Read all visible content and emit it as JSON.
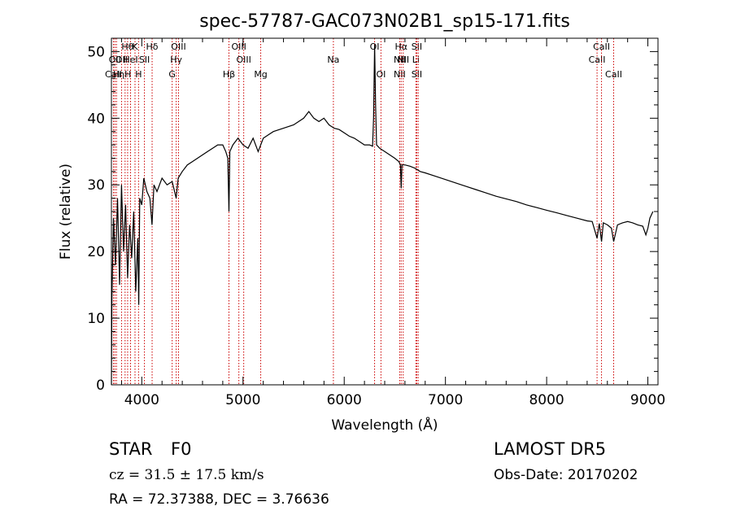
{
  "chart_data": {
    "type": "line",
    "title": "spec-57787-GAC073N02B1_sp15-171.fits",
    "xlabel": "Wavelength (Å)",
    "ylabel": "Flux (relative)",
    "xlim": [
      3700,
      9100
    ],
    "ylim": [
      0,
      52
    ],
    "xticks": [
      4000,
      5000,
      6000,
      7000,
      8000,
      9000
    ],
    "yticks": [
      0,
      10,
      20,
      30,
      40,
      50
    ],
    "grid": false,
    "series": [
      {
        "color": "#000000",
        "x": [
          3700,
          3705,
          3720,
          3740,
          3760,
          3780,
          3800,
          3820,
          3840,
          3860,
          3880,
          3900,
          3920,
          3940,
          3960,
          3970,
          3980,
          4000,
          4020,
          4050,
          4080,
          4101,
          4120,
          4150,
          4200,
          4250,
          4300,
          4340,
          4360,
          4400,
          4450,
          4500,
          4550,
          4600,
          4650,
          4700,
          4750,
          4800,
          4830,
          4850,
          4861,
          4870,
          4900,
          4950,
          5000,
          5050,
          5100,
          5150,
          5200,
          5250,
          5300,
          5400,
          5500,
          5600,
          5650,
          5700,
          5750,
          5800,
          5850,
          5900,
          5950,
          6000,
          6050,
          6100,
          6150,
          6200,
          6250,
          6280,
          6290,
          6300,
          6310,
          6320,
          6350,
          6400,
          6450,
          6500,
          6540,
          6555,
          6563,
          6570,
          6600,
          6650,
          6700,
          6750,
          6800,
          6900,
          7000,
          7100,
          7200,
          7300,
          7400,
          7500,
          7600,
          7700,
          7800,
          7900,
          8000,
          8100,
          8200,
          8300,
          8400,
          8450,
          8498,
          8520,
          8542,
          8560,
          8600,
          8640,
          8662,
          8700,
          8750,
          8800,
          8850,
          8900,
          8950,
          8980,
          9000,
          9020,
          9050
        ],
        "values": [
          0,
          13,
          25,
          18,
          28,
          15,
          30,
          20,
          27,
          16,
          24,
          19,
          26,
          14,
          22,
          12,
          28,
          27,
          31,
          29,
          28,
          24,
          30,
          29,
          31,
          30,
          30.5,
          28,
          31,
          32,
          33,
          33.5,
          34,
          34.5,
          35,
          35.5,
          36,
          36,
          35,
          34,
          26,
          35,
          36,
          37,
          36,
          35.5,
          37,
          35,
          37,
          37.5,
          38,
          38.5,
          39,
          40,
          41,
          40,
          39.5,
          40,
          39,
          38.5,
          38.3,
          37.8,
          37.3,
          37,
          36.5,
          36,
          36,
          35.8,
          40,
          51,
          42,
          36,
          35.5,
          35,
          34.5,
          34,
          33.5,
          33,
          29.5,
          33,
          33,
          32.8,
          32.5,
          32,
          31.8,
          31.3,
          30.8,
          30.3,
          29.8,
          29.3,
          28.8,
          28.3,
          27.9,
          27.5,
          27,
          26.6,
          26.2,
          25.8,
          25.4,
          25,
          24.6,
          24.5,
          22,
          24.2,
          21.5,
          24.3,
          24,
          23.5,
          21.5,
          24,
          24.3,
          24.5,
          24.3,
          24,
          23.8,
          22.5,
          23.5,
          25,
          26
        ]
      }
    ],
    "lines": [
      {
        "wl": 3720,
        "labels": [
          "",
          "",
          "CaII"
        ]
      },
      {
        "wl": 3734,
        "labels": [
          "",
          "OII",
          ""
        ]
      },
      {
        "wl": 3750,
        "labels": [
          "",
          "",
          "H"
        ]
      },
      {
        "wl": 3800,
        "labels": [
          "",
          "OII",
          ""
        ]
      },
      {
        "wl": 3835,
        "labels": [
          "",
          "",
          "ηH"
        ]
      },
      {
        "wl": 3860,
        "labels": [
          "Hθ",
          "",
          ""
        ]
      },
      {
        "wl": 3889,
        "labels": [
          "",
          "HeI",
          ""
        ]
      },
      {
        "wl": 3933,
        "labels": [
          "K",
          "",
          ""
        ]
      },
      {
        "wl": 3968,
        "labels": [
          "",
          "",
          "H"
        ]
      },
      {
        "wl": 4026,
        "labels": [
          "",
          "SII",
          ""
        ]
      },
      {
        "wl": 4102,
        "labels": [
          "Hδ",
          "",
          ""
        ]
      },
      {
        "wl": 4300,
        "labels": [
          "",
          "",
          "G"
        ]
      },
      {
        "wl": 4340,
        "labels": [
          "",
          "Hγ",
          ""
        ]
      },
      {
        "wl": 4363,
        "labels": [
          "OIII",
          "",
          ""
        ]
      },
      {
        "wl": 4861,
        "labels": [
          "",
          "",
          "Hβ"
        ]
      },
      {
        "wl": 4959,
        "labels": [
          "OIII",
          "",
          ""
        ]
      },
      {
        "wl": 5007,
        "labels": [
          "",
          "OIII",
          ""
        ]
      },
      {
        "wl": 5175,
        "labels": [
          "",
          "",
          "Mg"
        ]
      },
      {
        "wl": 5893,
        "labels": [
          "",
          "Na",
          ""
        ]
      },
      {
        "wl": 6300,
        "labels": [
          "OI",
          "",
          ""
        ]
      },
      {
        "wl": 6363,
        "labels": [
          "",
          "",
          "OI"
        ]
      },
      {
        "wl": 6548,
        "labels": [
          "",
          "NII",
          "NII"
        ]
      },
      {
        "wl": 6563,
        "labels": [
          "Hα",
          "",
          ""
        ]
      },
      {
        "wl": 6583,
        "labels": [
          "",
          "NII",
          ""
        ]
      },
      {
        "wl": 6708,
        "labels": [
          "",
          "Li",
          ""
        ]
      },
      {
        "wl": 6717,
        "labels": [
          "SII",
          "",
          "SII"
        ]
      },
      {
        "wl": 6731,
        "labels": [
          "",
          "",
          ""
        ]
      },
      {
        "wl": 8498,
        "labels": [
          "",
          "CaII",
          ""
        ]
      },
      {
        "wl": 8542,
        "labels": [
          "CaII",
          "",
          ""
        ]
      },
      {
        "wl": 8662,
        "labels": [
          "",
          "",
          "CaII"
        ]
      }
    ]
  },
  "info": {
    "class_label": "STAR",
    "subclass": "F0",
    "survey": "LAMOST DR5",
    "cz": "cz = 31.5 ± 17.5 km/s",
    "obs_date": "Obs-Date: 20170202",
    "radec": "RA =  72.37388, DEC =   3.76636"
  }
}
